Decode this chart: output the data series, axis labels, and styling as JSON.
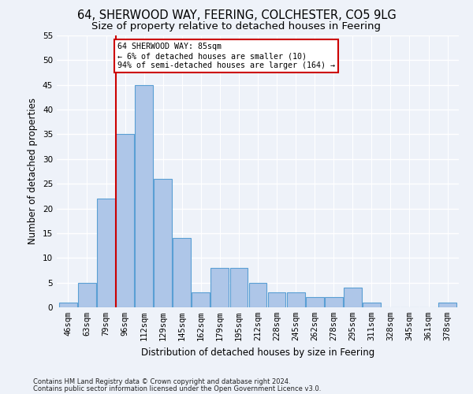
{
  "title1": "64, SHERWOOD WAY, FEERING, COLCHESTER, CO5 9LG",
  "title2": "Size of property relative to detached houses in Feering",
  "xlabel": "Distribution of detached houses by size in Feering",
  "ylabel": "Number of detached properties",
  "bar_labels": [
    "46sqm",
    "63sqm",
    "79sqm",
    "96sqm",
    "112sqm",
    "129sqm",
    "145sqm",
    "162sqm",
    "179sqm",
    "195sqm",
    "212sqm",
    "228sqm",
    "245sqm",
    "262sqm",
    "278sqm",
    "295sqm",
    "311sqm",
    "328sqm",
    "345sqm",
    "361sqm",
    "378sqm"
  ],
  "bar_values": [
    1,
    5,
    22,
    35,
    45,
    26,
    14,
    3,
    8,
    8,
    5,
    3,
    3,
    2,
    2,
    4,
    1,
    0,
    0,
    0,
    1
  ],
  "bar_color": "#aec6e8",
  "bar_edge_color": "#5a9fd4",
  "vline_color": "#cc0000",
  "annotation_text": "64 SHERWOOD WAY: 85sqm\n← 6% of detached houses are smaller (10)\n94% of semi-detached houses are larger (164) →",
  "annotation_box_color": "#ffffff",
  "annotation_box_edge": "#cc0000",
  "ylim": [
    0,
    55
  ],
  "yticks": [
    0,
    5,
    10,
    15,
    20,
    25,
    30,
    35,
    40,
    45,
    50,
    55
  ],
  "footnote1": "Contains HM Land Registry data © Crown copyright and database right 2024.",
  "footnote2": "Contains public sector information licensed under the Open Government Licence v3.0.",
  "background_color": "#eef2f9",
  "grid_color": "#ffffff",
  "title_fontsize": 10.5,
  "subtitle_fontsize": 9.5,
  "axis_label_fontsize": 8.5,
  "tick_fontsize": 7.5,
  "footnote_fontsize": 6.0
}
